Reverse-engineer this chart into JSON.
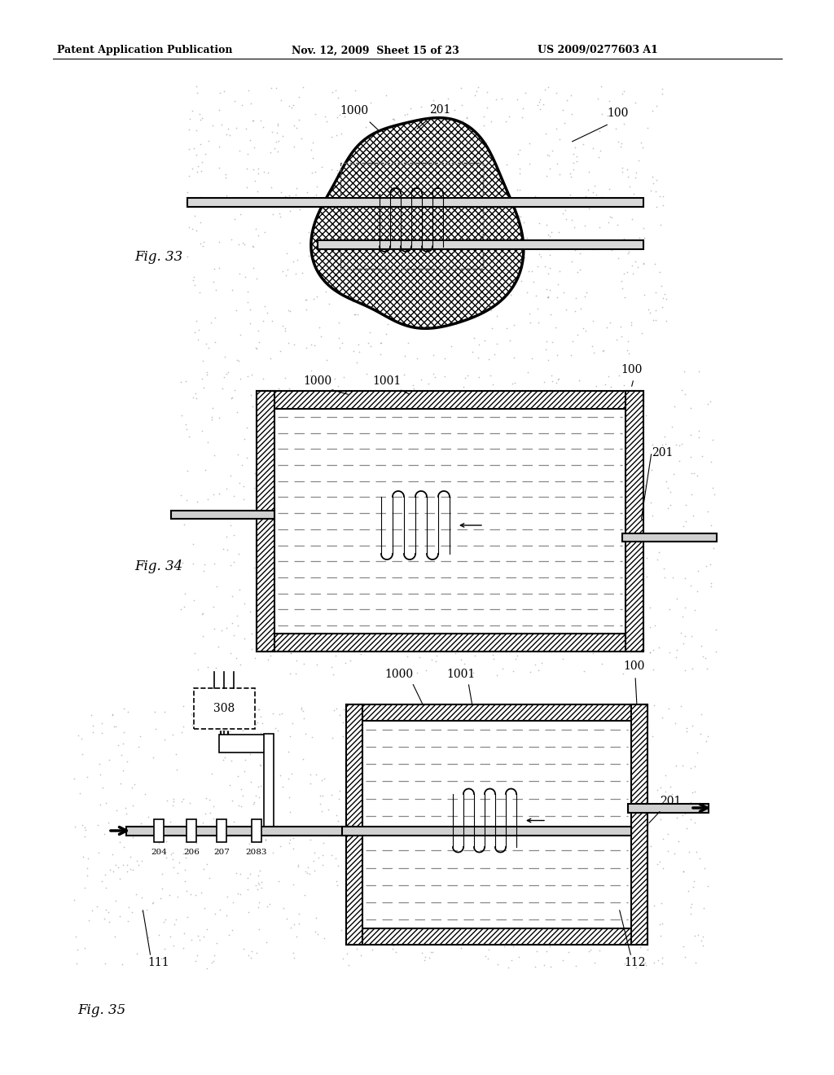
{
  "title_left": "Patent Application Publication",
  "title_mid": "Nov. 12, 2009  Sheet 15 of 23",
  "title_right": "US 2009/0277603 A1",
  "fig33_label": "Fig. 33",
  "fig34_label": "Fig. 34",
  "fig35_label": "Fig. 35",
  "bg_color": "#ffffff"
}
